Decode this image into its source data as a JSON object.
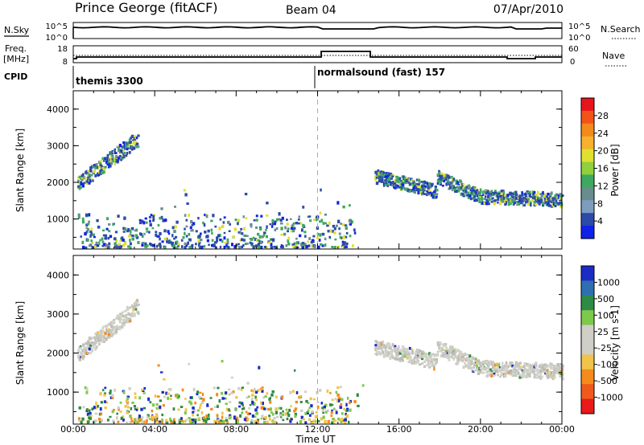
{
  "header": {
    "station": "Prince George (fitACF)",
    "beam": "Beam 04",
    "date": "07/Apr/2010"
  },
  "noise_panel": {
    "left_label": "N.Sky",
    "right_label": "N.Search",
    "left_ticks": [
      "10^5",
      "10^0"
    ],
    "right_ticks": [
      "10^5",
      "10^0"
    ]
  },
  "freq_panel": {
    "left_label_top": "Freq.",
    "left_label_bottom": "[MHz]",
    "left_ticks": [
      "18",
      "8"
    ],
    "right_label": "Nave",
    "right_ticks": [
      "60",
      "0"
    ]
  },
  "cpid": {
    "label": "CPID",
    "modes": [
      {
        "text": "themis 3300",
        "start": "00:00"
      },
      {
        "text": "normalsound (fast) 157",
        "start": "12:00"
      }
    ]
  },
  "power_colorbar": {
    "label": "Power [dB]",
    "ticks": [
      "28",
      "24",
      "20",
      "16",
      "12",
      "8",
      "4"
    ],
    "colors": [
      "#e8151c",
      "#f4521b",
      "#f38a1c",
      "#f6b12d",
      "#dfe030",
      "#8ed13d",
      "#3ea860",
      "#6b8c8f",
      "#7e9cbf",
      "#2c4aa8",
      "#0e22e8"
    ]
  },
  "velocity_colorbar": {
    "label": "Velocity [m s-1]",
    "ticks": [
      "1000",
      "500",
      "100",
      "25",
      "-25",
      "-100",
      "-500",
      "-1000"
    ],
    "colors": [
      "#1b2cc4",
      "#2f6eb0",
      "#2e8a45",
      "#7ec84c",
      "#cfcfc8",
      "#cfcfc8",
      "#f0c44a",
      "#f58b1d",
      "#ef5a1c",
      "#e81a1a"
    ]
  },
  "x_axis": {
    "label": "Time UT",
    "ticks": [
      "00:00",
      "04:00",
      "08:00",
      "12:00",
      "16:00",
      "20:00",
      "00:00"
    ]
  },
  "y_axis": {
    "label": "Slant Range [km]",
    "ticks": [
      "4000",
      "3000",
      "2000",
      "1000"
    ]
  },
  "chart_data": {
    "type": "heatmap",
    "title": "Prince George (fitACF)  Beam 04  07/Apr/2010",
    "xlabel": "Time UT",
    "ylabel": "Slant Range [km]",
    "x_range_hours": [
      0,
      24
    ],
    "y_range_km": [
      180,
      4500
    ],
    "mode_change_hour": 12,
    "panels": [
      "Power [dB]",
      "Velocity [m s-1]"
    ],
    "scatter_regions": [
      {
        "t0": 0.2,
        "t1": 3.2,
        "r0": 1850,
        "r1": 3250,
        "power": "8-16",
        "velocity": "-25 to 25"
      },
      {
        "t0": 14.8,
        "t1": 17.8,
        "r0": 1750,
        "r1": 2300,
        "power": "8-20",
        "velocity": "-25 to 25"
      },
      {
        "t0": 17.8,
        "t1": 24.0,
        "r0": 1400,
        "r1": 2250,
        "power": "8-20",
        "velocity": "-25 to 25"
      },
      {
        "t0": 6.0,
        "t1": 13.5,
        "r0": 200,
        "r1": 1000,
        "power": "4-16",
        "velocity": "-500 to 500"
      }
    ]
  }
}
